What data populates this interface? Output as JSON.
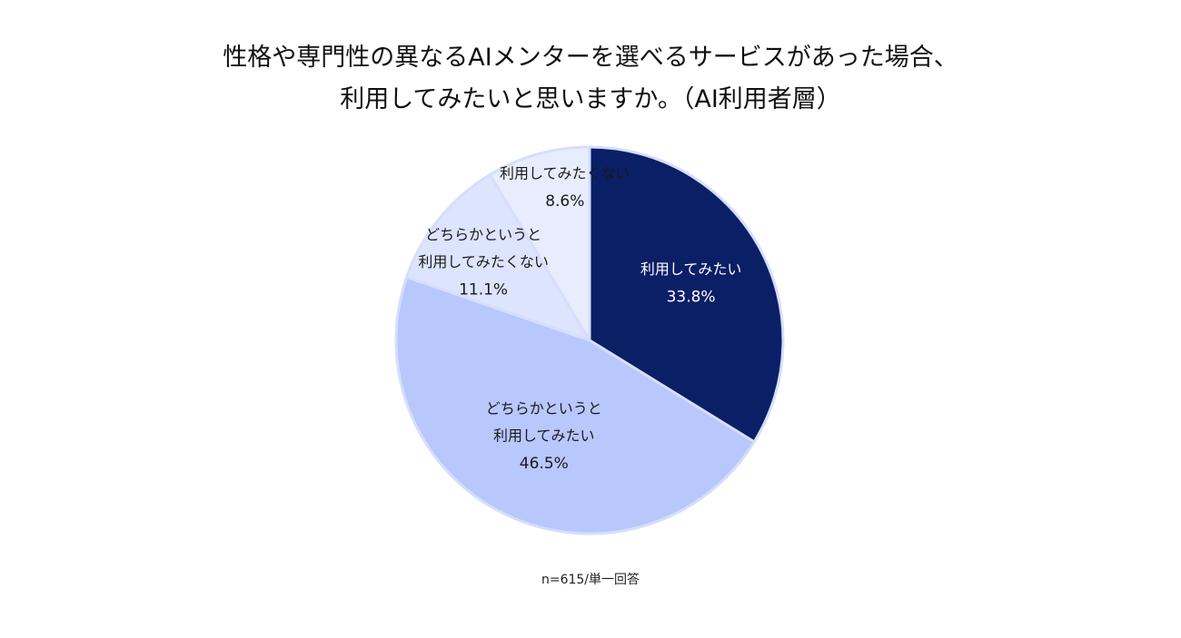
{
  "chart_data": {
    "type": "pie",
    "title_lines": [
      "性格や専門性の異なるAIメンターを選べるサービスがあった場合、",
      "利用してみたいと思いますか。（AI利用者層）"
    ],
    "slices": [
      {
        "label_lines": [
          "利用してみたい"
        ],
        "value_label": "33.8%",
        "value": 33.8,
        "color": "#0a1f66",
        "text_color": "#ffffff"
      },
      {
        "label_lines": [
          "どちらかというと",
          "利用してみたい"
        ],
        "value_label": "46.5%",
        "value": 46.5,
        "color": "#b8c7fc",
        "text_color": "#1a1a1a"
      },
      {
        "label_lines": [
          "どちらかというと",
          "利用してみたくない"
        ],
        "value_label": "11.1%",
        "value": 11.1,
        "color": "#dde4fd",
        "text_color": "#1a1a1a"
      },
      {
        "label_lines": [
          "利用してみたくない"
        ],
        "value_label": "8.6%",
        "value": 8.6,
        "color": "#e8edfe",
        "text_color": "#1a1a1a"
      }
    ],
    "start": "12 o'clock",
    "direction": "clockwise",
    "legend": "none",
    "note": "n=615/単一回答"
  }
}
